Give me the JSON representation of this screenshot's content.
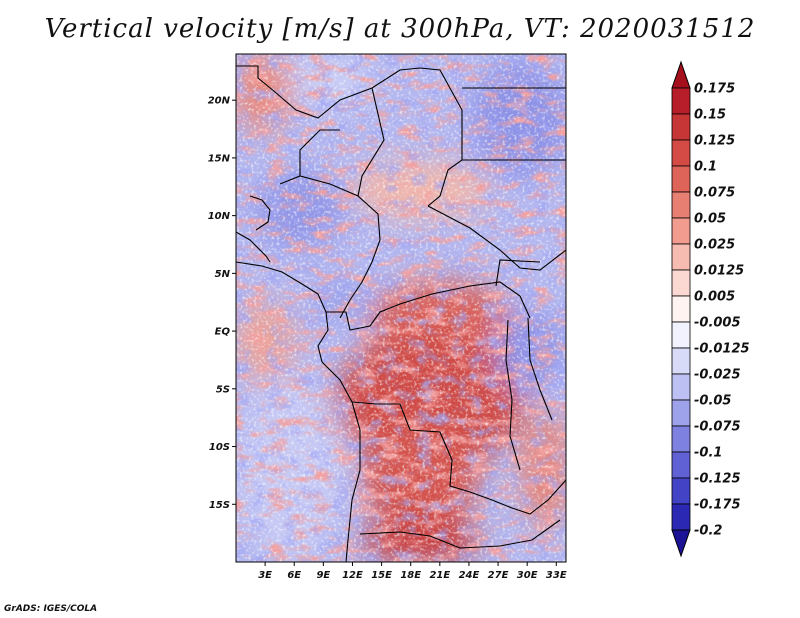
{
  "title": "Vertical velocity [m/s] at 300hPa, VT: 2020031512",
  "credit": "GrADS: IGES/COLA",
  "map": {
    "lat_range": [
      -20,
      24
    ],
    "lon_range": [
      0,
      34
    ],
    "lat_labels": [
      "20N",
      "15N",
      "10N",
      "5N",
      "EQ",
      "5S",
      "10S",
      "15S"
    ],
    "lon_labels": [
      "3E",
      "6E",
      "9E",
      "12E",
      "15E",
      "18E",
      "21E",
      "24E",
      "27E",
      "30E",
      "33E"
    ]
  },
  "colorbar": {
    "labels": [
      "0.175",
      "0.15",
      "0.125",
      "0.1",
      "0.075",
      "0.05",
      "0.025",
      "0.0125",
      "0.005",
      "-0.005",
      "-0.0125",
      "-0.025",
      "-0.05",
      "-0.075",
      "-0.1",
      "-0.125",
      "-0.175",
      "-0.2"
    ],
    "colors": [
      "#a50f1c",
      "#b81e2a",
      "#c73636",
      "#d44a44",
      "#de6358",
      "#e77f72",
      "#f19c8f",
      "#f7bcb1",
      "#fbd9d2",
      "#fef3f0",
      "#f1f2fd",
      "#d8dbf8",
      "#bcc0f2",
      "#9ea2ea",
      "#7e81e0",
      "#6061d4",
      "#4343c6",
      "#2b28b4",
      "#1c1296"
    ]
  }
}
